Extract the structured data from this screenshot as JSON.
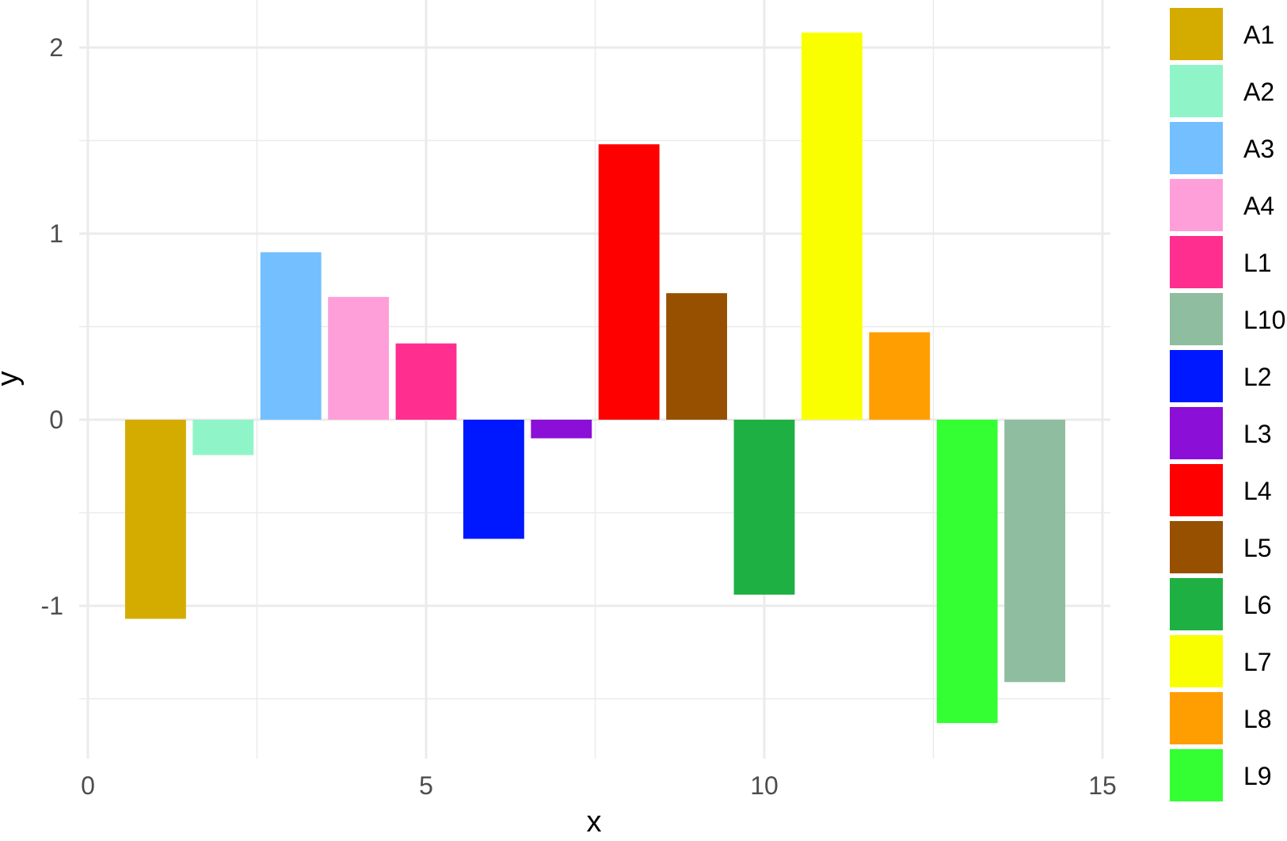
{
  "chart_data": {
    "type": "bar",
    "xlabel": "x",
    "ylabel": "y",
    "xlim": [
      0,
      15
    ],
    "ylim": [
      -1.8,
      2.25
    ],
    "x_ticks": [
      0,
      5,
      10,
      15
    ],
    "y_ticks": [
      -1,
      0,
      1,
      2
    ],
    "x_tick_labels": [
      "0",
      "5",
      "10",
      "15"
    ],
    "y_tick_labels": [
      "-1",
      "0",
      "1",
      "2"
    ],
    "grid": true,
    "legend_position": "right",
    "series": [
      {
        "name": "A1",
        "x": 1,
        "value": -1.07,
        "color": "#D4AC00"
      },
      {
        "name": "A2",
        "x": 2,
        "value": -0.19,
        "color": "#8FF5C8"
      },
      {
        "name": "A3",
        "x": 3,
        "value": 0.9,
        "color": "#73BFFF"
      },
      {
        "name": "A4",
        "x": 4,
        "value": 0.66,
        "color": "#FF9FD9"
      },
      {
        "name": "L1",
        "x": 5,
        "value": 0.41,
        "color": "#FF2E8F"
      },
      {
        "name": "L2",
        "x": 6,
        "value": -0.64,
        "color": "#0018FF"
      },
      {
        "name": "L3",
        "x": 7,
        "value": -0.1,
        "color": "#8B0FD6"
      },
      {
        "name": "L4",
        "x": 8,
        "value": 1.48,
        "color": "#FF0000"
      },
      {
        "name": "L5",
        "x": 9,
        "value": 0.68,
        "color": "#975000"
      },
      {
        "name": "L6",
        "x": 10,
        "value": -0.94,
        "color": "#1FB044"
      },
      {
        "name": "L7",
        "x": 11,
        "value": 2.08,
        "color": "#FAFF00"
      },
      {
        "name": "L8",
        "x": 12,
        "value": 0.47,
        "color": "#FF9E00"
      },
      {
        "name": "L9",
        "x": 13,
        "value": -1.63,
        "color": "#33FF33"
      },
      {
        "name": "L10",
        "x": 14,
        "value": -1.41,
        "color": "#8FBD9F"
      }
    ],
    "legend_order": [
      "A1",
      "A2",
      "A3",
      "A4",
      "L1",
      "L10",
      "L2",
      "L3",
      "L4",
      "L5",
      "L6",
      "L7",
      "L8",
      "L9"
    ]
  }
}
